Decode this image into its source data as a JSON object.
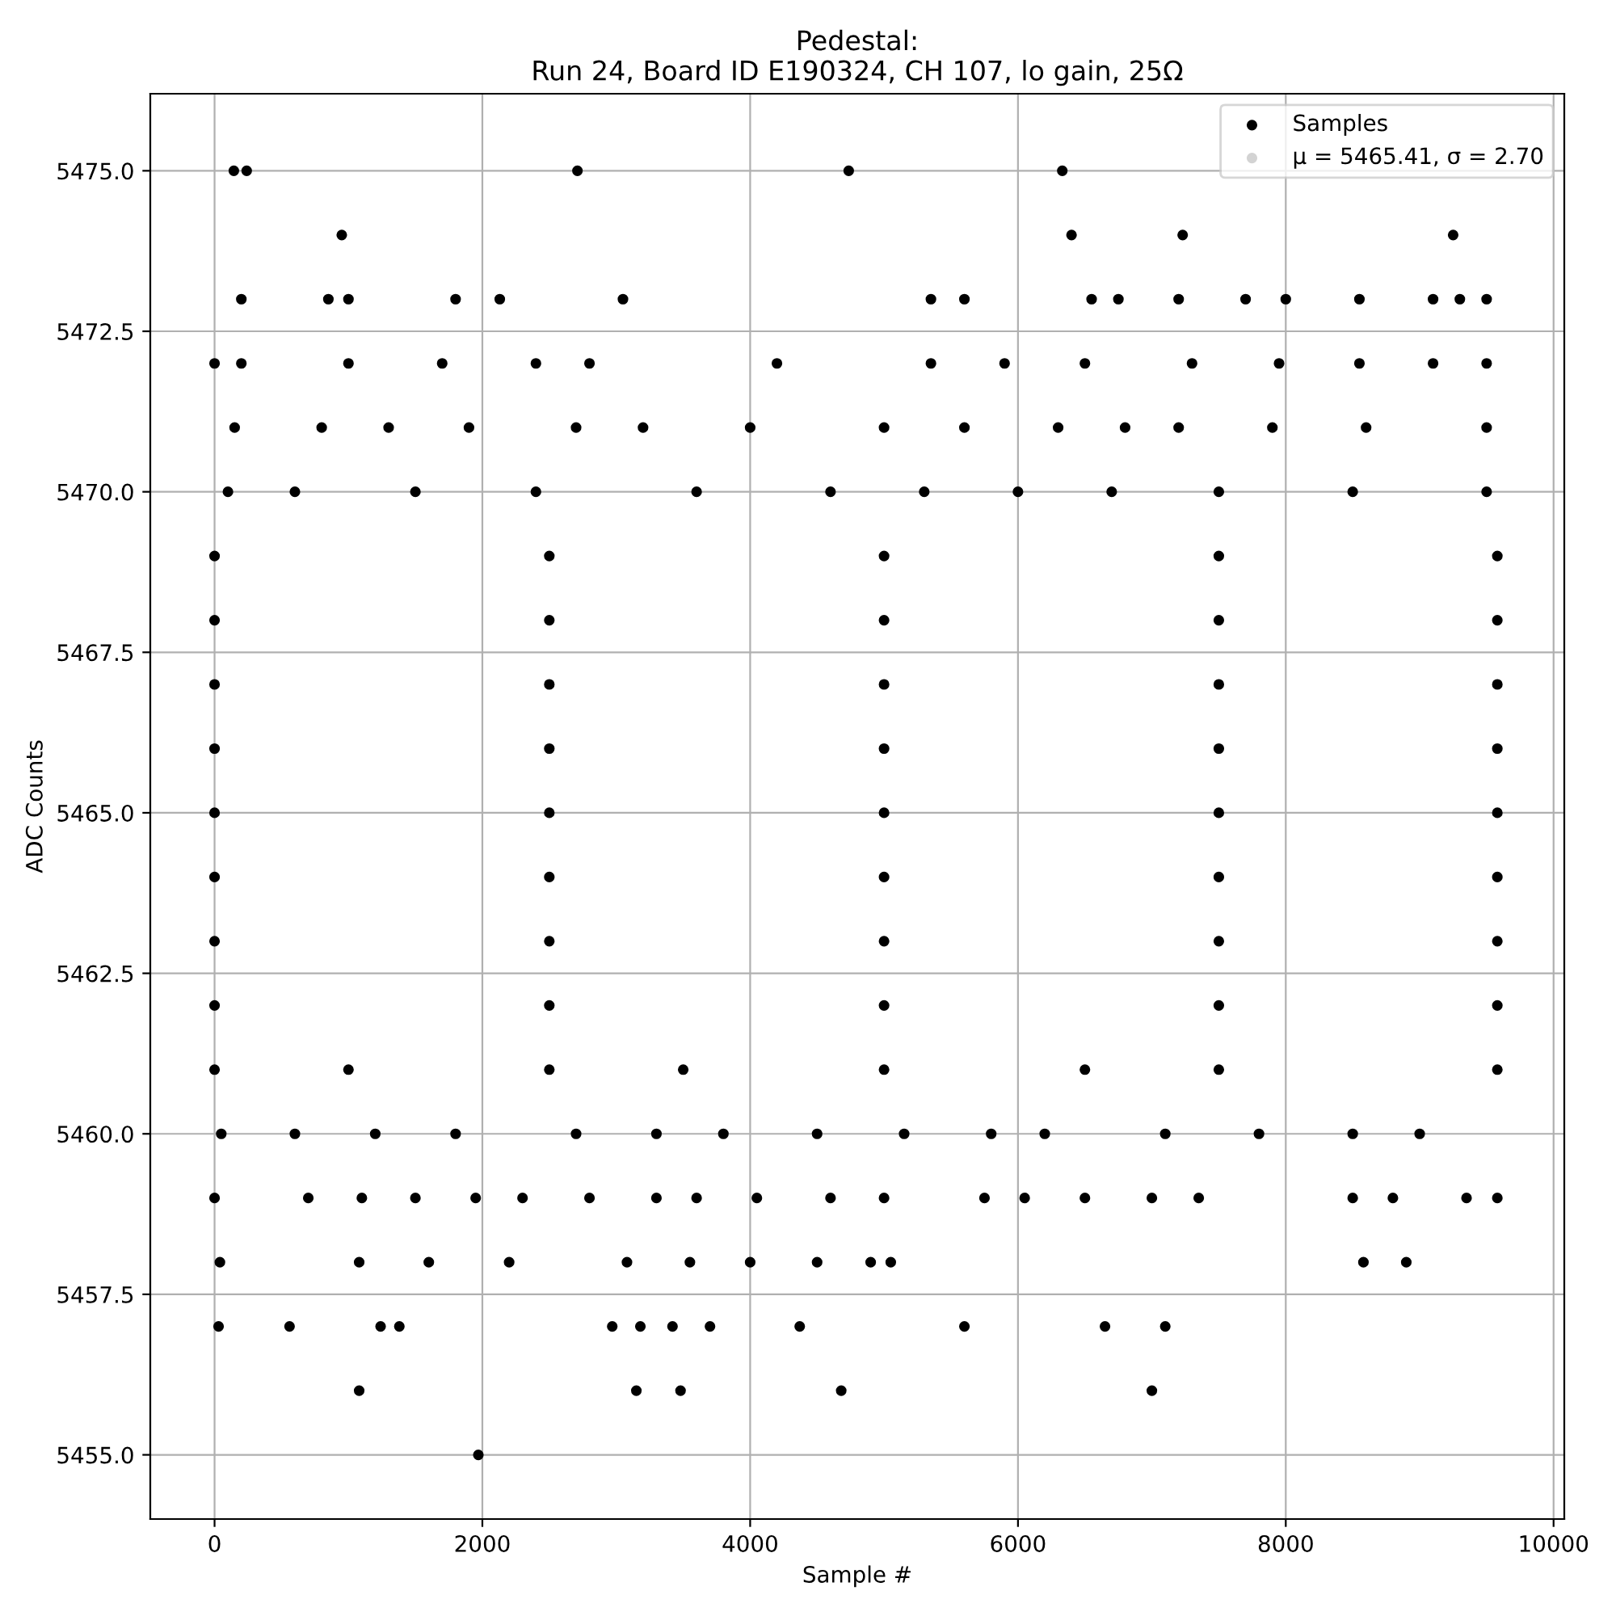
{
  "chart_data": {
    "type": "scatter",
    "title": "Pedestal:\nRun 24, Board ID E190324, CH 107, lo gain, 25Ω",
    "xlabel": "Sample #",
    "ylabel": "ADC Counts",
    "xlim": [
      -480,
      10080
    ],
    "ylim": [
      5454,
      5476.2
    ],
    "xticks": [
      0,
      2000,
      4000,
      6000,
      8000,
      10000
    ],
    "yticks": [
      {
        "value": 5455,
        "label": "5455.0"
      },
      {
        "value": 5457.5,
        "label": "5457.5"
      },
      {
        "value": 5460,
        "label": "5460.0"
      },
      {
        "value": 5462.5,
        "label": "5462.5"
      },
      {
        "value": 5465,
        "label": "5465.0"
      },
      {
        "value": 5467.5,
        "label": "5467.5"
      },
      {
        "value": 5470,
        "label": "5470.0"
      },
      {
        "value": 5472.5,
        "label": "5472.5"
      },
      {
        "value": 5475,
        "label": "5475.0"
      }
    ],
    "grid": true,
    "legend": "top right",
    "marker": "circle",
    "series": [
      {
        "name": "Samples",
        "color": "#000000",
        "x": [
          144,
          240,
          2710,
          4736,
          6331,
          950,
          6400,
          7230,
          9250,
          200,
          850,
          1000,
          1800,
          2130,
          3050,
          5350,
          5600,
          6550,
          6750,
          7200,
          7700,
          8000,
          8550,
          9100,
          9300,
          9500,
          0,
          200,
          1000,
          1700,
          2400,
          2800,
          4200,
          5350,
          5900,
          6500,
          7300,
          7950,
          8550,
          9100,
          9500,
          150,
          800,
          1300,
          1900,
          2700,
          3200,
          4000,
          5000,
          5600,
          6300,
          6800,
          7200,
          7900,
          8600,
          9500,
          100,
          600,
          1500,
          2400,
          3600,
          4600,
          5300,
          6000,
          6700,
          7500,
          8500,
          9500,
          0,
          2500,
          5000,
          7500,
          9580,
          0,
          2500,
          5000,
          7500,
          9580,
          0,
          2500,
          5000,
          7500,
          9580,
          0,
          2500,
          5000,
          7500,
          9580,
          0,
          2500,
          5000,
          7500,
          9580,
          0,
          2500,
          5000,
          7500,
          9580,
          0,
          2500,
          5000,
          7500,
          9580,
          0,
          2500,
          5000,
          7500,
          9580,
          0,
          1000,
          2500,
          3500,
          5000,
          6500,
          7500,
          9580,
          50,
          600,
          1200,
          1800,
          2700,
          3300,
          3800,
          4500,
          5150,
          5800,
          6200,
          7100,
          7800,
          8500,
          9000,
          0,
          700,
          1100,
          1500,
          1950,
          2300,
          2800,
          3300,
          3600,
          4050,
          4600,
          5000,
          5750,
          6050,
          6500,
          7000,
          7350,
          8500,
          8800,
          9350,
          9580,
          40,
          1080,
          1600,
          2200,
          3080,
          3550,
          4000,
          4500,
          4900,
          5050,
          8580,
          8900,
          30,
          560,
          1240,
          1380,
          2970,
          3180,
          3420,
          3700,
          4370,
          5600,
          6650,
          7100,
          1080,
          3150,
          3480,
          4680,
          7000,
          1970
        ],
        "values": [
          5475,
          5475,
          5475,
          5475,
          5475,
          5474,
          5474,
          5474,
          5474,
          5473,
          5473,
          5473,
          5473,
          5473,
          5473,
          5473,
          5473,
          5473,
          5473,
          5473,
          5473,
          5473,
          5473,
          5473,
          5473,
          5473,
          5472,
          5472,
          5472,
          5472,
          5472,
          5472,
          5472,
          5472,
          5472,
          5472,
          5472,
          5472,
          5472,
          5472,
          5472,
          5471,
          5471,
          5471,
          5471,
          5471,
          5471,
          5471,
          5471,
          5471,
          5471,
          5471,
          5471,
          5471,
          5471,
          5471,
          5470,
          5470,
          5470,
          5470,
          5470,
          5470,
          5470,
          5470,
          5470,
          5470,
          5470,
          5470,
          5469,
          5469,
          5469,
          5469,
          5469,
          5468,
          5468,
          5468,
          5468,
          5468,
          5467,
          5467,
          5467,
          5467,
          5467,
          5466,
          5466,
          5466,
          5466,
          5466,
          5465,
          5465,
          5465,
          5465,
          5465,
          5464,
          5464,
          5464,
          5464,
          5464,
          5463,
          5463,
          5463,
          5463,
          5463,
          5462,
          5462,
          5462,
          5462,
          5462,
          5461,
          5461,
          5461,
          5461,
          5461,
          5461,
          5461,
          5461,
          5460,
          5460,
          5460,
          5460,
          5460,
          5460,
          5460,
          5460,
          5460,
          5460,
          5460,
          5460,
          5460,
          5460,
          5460,
          5459,
          5459,
          5459,
          5459,
          5459,
          5459,
          5459,
          5459,
          5459,
          5459,
          5459,
          5459,
          5459,
          5459,
          5459,
          5459,
          5459,
          5459,
          5459,
          5459,
          5459,
          5458,
          5458,
          5458,
          5458,
          5458,
          5458,
          5458,
          5458,
          5458,
          5458,
          5458,
          5458,
          5457,
          5457,
          5457,
          5457,
          5457,
          5457,
          5457,
          5457,
          5457,
          5457,
          5457,
          5457,
          5456,
          5456,
          5456,
          5456,
          5456,
          5455
        ]
      },
      {
        "name": "μ = 5465.41, σ = 2.70",
        "color": "#d3d3d3"
      }
    ]
  }
}
